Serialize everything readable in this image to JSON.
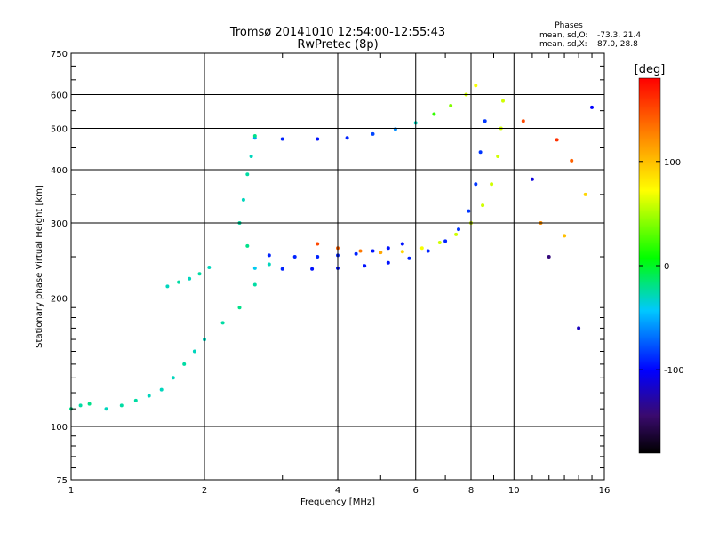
{
  "chart_data": {
    "type": "scatter",
    "title": "Tromsø 20141010 12:54:00-12:55:43",
    "subtitle": "RwPretec (8p)",
    "xlabel": "Frequency [MHz]",
    "ylabel": "Stationary phase Virtual Height [km]",
    "xscale": "log",
    "yscale": "log",
    "xlim": [
      1,
      16
    ],
    "ylim": [
      75,
      750
    ],
    "xticks": [
      1,
      2,
      4,
      6,
      8,
      10,
      16
    ],
    "yticks": [
      75,
      100,
      200,
      300,
      400,
      500,
      600,
      750
    ],
    "grid": true,
    "phase_stats": {
      "title": "Phases",
      "o_label": "mean, sd,O:",
      "o_values": "-73.3, 21.4",
      "x_label": "mean, sd,X:",
      "x_values": "87.0, 28.8"
    },
    "colorbar": {
      "label": "[deg]",
      "ticks": [
        100,
        0,
        -100
      ],
      "range": [
        -180,
        180
      ]
    },
    "traces": [
      {
        "x": [
          2.6,
          3.0,
          3.6,
          4.2,
          4.8,
          5.4,
          6.0,
          6.6,
          7.2,
          7.8,
          8.2
        ],
        "y": [
          475,
          472,
          472,
          475,
          485,
          498,
          515,
          540,
          565,
          600,
          630
        ],
        "phase": [
          -55,
          -90,
          -95,
          -90,
          -80,
          -60,
          -30,
          20,
          40,
          60,
          70
        ]
      },
      {
        "x": [
          2.6,
          3.0,
          3.5,
          4.0,
          4.6,
          5.2,
          5.8,
          6.4,
          7.0,
          7.5,
          7.9,
          8.2,
          8.4,
          8.6
        ],
        "y": [
          235,
          234,
          234,
          235,
          238,
          242,
          248,
          258,
          272,
          290,
          320,
          370,
          440,
          520
        ],
        "phase": [
          -40,
          -90,
          -95,
          -95,
          -95,
          -95,
          -90,
          -90,
          -90,
          -85,
          -85,
          -85,
          -85,
          -85
        ]
      },
      {
        "x": [
          3.6,
          4.0,
          4.5,
          5.0,
          5.6,
          6.2,
          6.8,
          7.4,
          8.0,
          8.5,
          8.9,
          9.2,
          9.35,
          9.45
        ],
        "y": [
          268,
          262,
          258,
          256,
          257,
          262,
          270,
          282,
          300,
          330,
          370,
          430,
          500,
          580
        ],
        "phase": [
          150,
          140,
          130,
          110,
          90,
          70,
          60,
          60,
          60,
          60,
          60,
          60,
          60,
          60
        ]
      },
      {
        "x": [
          2.5,
          2.8,
          3.2,
          3.6,
          4.0,
          4.4,
          4.8,
          5.2,
          5.6
        ],
        "y": [
          265,
          252,
          250,
          250,
          252,
          254,
          258,
          262,
          268
        ],
        "phase": [
          -20,
          -90,
          -90,
          -90,
          -90,
          -90,
          -95,
          -95,
          -95
        ]
      },
      {
        "x": [
          1.0,
          1.05,
          1.1,
          1.2,
          1.3,
          1.4,
          1.5,
          1.6,
          1.7,
          1.8,
          1.9,
          2.0,
          2.2,
          2.4,
          2.6,
          2.8
        ],
        "y": [
          110,
          112,
          113,
          110,
          112,
          115,
          118,
          122,
          130,
          140,
          150,
          160,
          175,
          190,
          215,
          240
        ],
        "phase": [
          -20,
          -25,
          -20,
          -30,
          -25,
          -25,
          -30,
          -30,
          -30,
          -25,
          -30,
          -30,
          -25,
          -20,
          -25,
          -30
        ]
      },
      {
        "x": [
          1.65,
          1.75,
          1.85,
          1.95,
          2.05
        ],
        "y": [
          213,
          218,
          222,
          228,
          236
        ],
        "phase": [
          -30,
          -25,
          -30,
          -25,
          -30
        ]
      },
      {
        "x": [
          2.4,
          2.45,
          2.5,
          2.55,
          2.6
        ],
        "y": [
          300,
          340,
          390,
          430,
          480
        ],
        "phase": [
          -25,
          -30,
          -25,
          -30,
          -20
        ]
      },
      {
        "x": [
          10.5,
          11.0,
          11.5,
          12.0,
          12.5,
          13.0,
          13.5,
          14.0,
          14.5,
          15.0
        ],
        "y": [
          520,
          380,
          300,
          250,
          470,
          280,
          420,
          170,
          350,
          560
        ],
        "phase": [
          150,
          -110,
          120,
          -140,
          160,
          100,
          140,
          -120,
          90,
          -100
        ]
      }
    ]
  }
}
